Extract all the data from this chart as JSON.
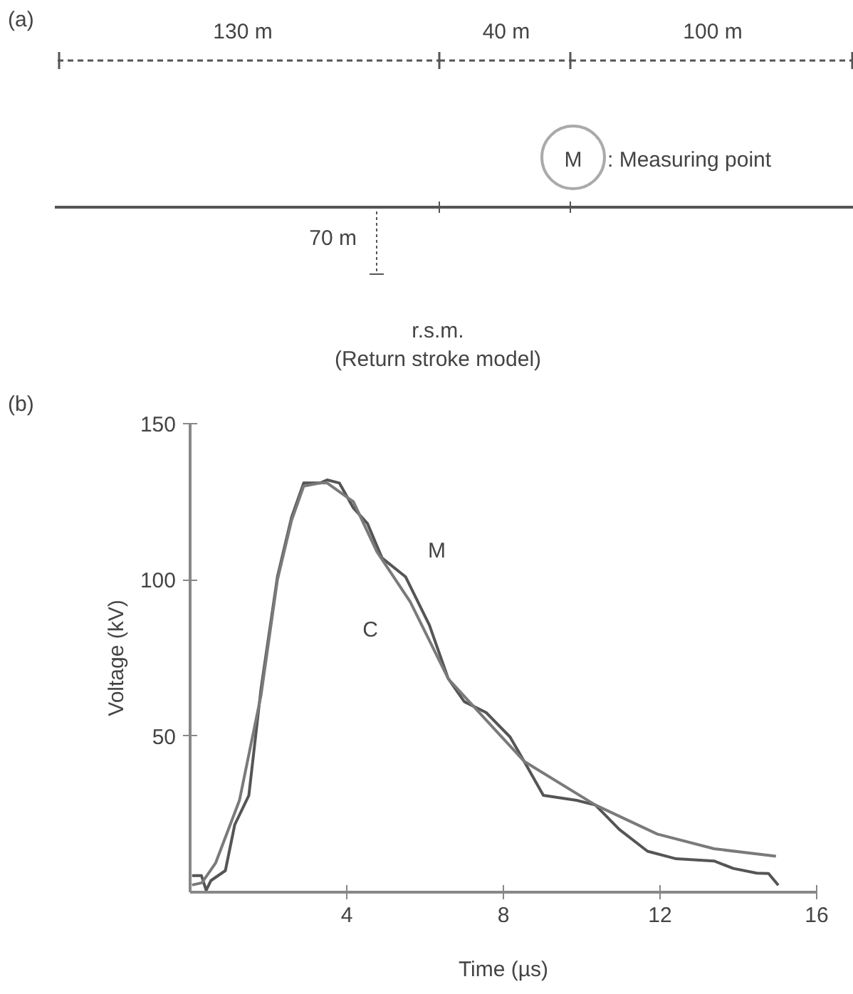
{
  "chart_data": [
    {
      "type": "other",
      "title": "(a)",
      "annotations": [
        "130 m",
        "40 m",
        "100 m",
        "M",
        ": Measuring point",
        "70 m",
        "r.s.m.",
        "(Return stroke model)"
      ]
    },
    {
      "type": "line",
      "title": "(b)",
      "xlabel": "Time (µs)",
      "ylabel": "Voltage (kV)",
      "xlim": [
        0,
        16
      ],
      "ylim": [
        0,
        150
      ],
      "xticks": [
        4,
        8,
        12,
        16
      ],
      "yticks": [
        50,
        100,
        150
      ],
      "grid": false,
      "legend": false,
      "series": [
        {
          "name": "M",
          "color": "#555555",
          "line_style": "solid",
          "x": [
            0.05,
            0.29,
            0.41,
            0.53,
            0.9,
            1.14,
            1.5,
            1.81,
            2.23,
            2.59,
            2.9,
            3.32,
            3.5,
            3.81,
            4.17,
            4.53,
            4.9,
            5.5,
            6.11,
            6.59,
            7.0,
            7.56,
            8.17,
            8.53,
            9.02,
            9.87,
            10.35,
            10.96,
            11.68,
            12.41,
            13.38,
            13.87,
            14.47,
            14.77,
            15.02
          ],
          "values": [
            5.3,
            5.3,
            0.6,
            3.7,
            6.9,
            21.6,
            31,
            65,
            101,
            120,
            131,
            131,
            132,
            131,
            123,
            118,
            107,
            101,
            85.5,
            68.4,
            61,
            57.5,
            49.7,
            41.9,
            31,
            29.4,
            27.9,
            20.1,
            13.1,
            10.7,
            10,
            7.6,
            6.1,
            6,
            2.2
          ]
        },
        {
          "name": "C",
          "color": "#7a7a7a",
          "line_style": "solid",
          "x": [
            0.05,
            0.3,
            0.65,
            1.26,
            1.81,
            2.23,
            2.59,
            2.9,
            3.32,
            3.5,
            4.17,
            4.77,
            5.62,
            6.59,
            6.7,
            8.53,
            10.35,
            11.93,
            13.38,
            14.96
          ],
          "values": [
            2.3,
            3,
            9.3,
            29.4,
            63,
            100,
            119,
            130,
            131,
            131,
            125,
            109,
            93,
            68.4,
            66.8,
            41.9,
            27.9,
            18.6,
            13.9,
            11.5
          ]
        }
      ]
    }
  ]
}
